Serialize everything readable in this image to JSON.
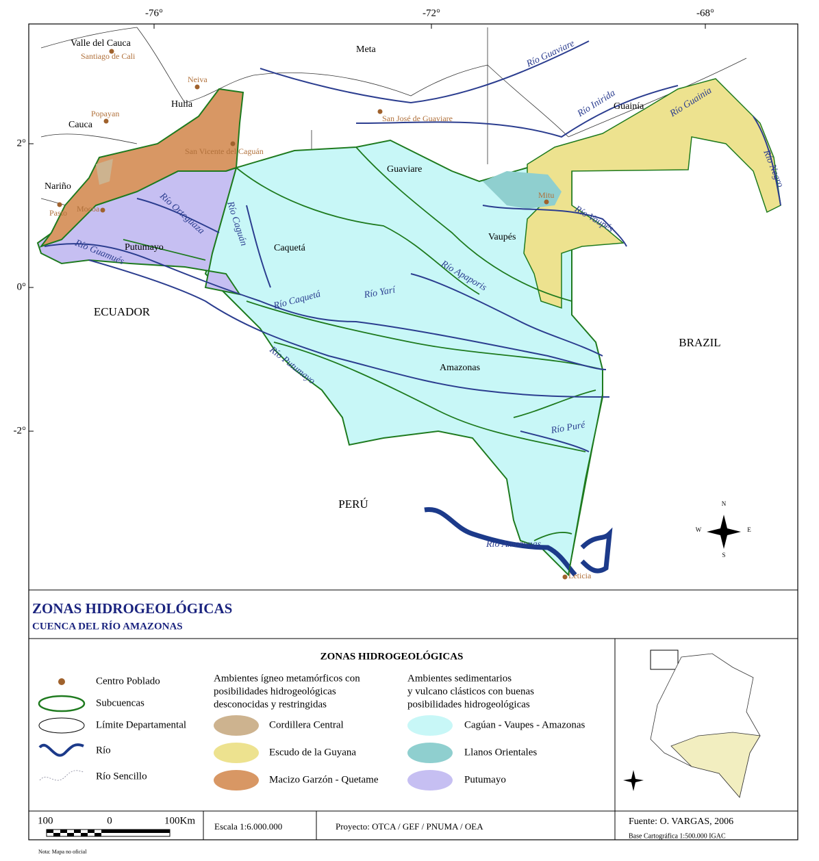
{
  "map": {
    "longitudes": [
      "-76°",
      "-72°",
      "-68°"
    ],
    "latitudes": [
      "2°",
      "0°",
      "-2°"
    ],
    "towns": [
      "Santiago de Cali",
      "Neiva",
      "Popayan",
      "San José de Guaviare",
      "San Vicente del Caguán",
      "Pasto",
      "Mocoa",
      "Mitu",
      "Leticia"
    ],
    "regions": [
      "Valle del Cauca",
      "Meta",
      "Huila",
      "Cauca",
      "Guainía",
      "Nariño",
      "Guaviare",
      "Putumayo",
      "Caquetá",
      "Vaupés",
      "Amazonas"
    ],
    "countries": [
      "ECUADOR",
      "BRAZIL",
      "PERÚ"
    ],
    "rivers": [
      "Río Guaviare",
      "Río Inirida",
      "Río Guainia",
      "Río Negro",
      "Río Vaupés",
      "Río Orteguaza",
      "Río Caguán",
      "Río Guamués",
      "Río Apaporis",
      "Río Yarí",
      "Río Caquetá",
      "Río Putumayo",
      "Río Puré",
      "Río Amazonas"
    ],
    "compass": {
      "north": "N",
      "south": "S",
      "east": "E",
      "west": "W"
    }
  },
  "title": "ZONAS HIDROGEOLÓGICAS",
  "subtitle": "CUENCA DEL RÍO AMAZONAS",
  "legend": {
    "title": "ZONAS HIDROGEOLÓGICAS",
    "symbols": [
      "Centro Poblado",
      "Subcuencas",
      "Límite Departamental",
      "Río",
      "Río Sencillo"
    ],
    "groups": [
      {
        "heading": [
          "Ambientes ígneo metamórficos con",
          "posibilidades hidrogeológicas",
          "desconocidas y restringidas"
        ],
        "items": [
          {
            "label": "Cordillera Central",
            "color": "#cdb38f"
          },
          {
            "label": "Escudo de la Guyana",
            "color": "#ede28f"
          },
          {
            "label": "Macizo Garzón - Quetame",
            "color": "#d89764"
          }
        ]
      },
      {
        "heading": [
          "Ambientes sedimentarios",
          "y vulcano clásticos con buenas",
          "posibilidades hidrogeológicas"
        ],
        "items": [
          {
            "label": "Cagúan - Vaupes - Amazonas",
            "color": "#c8f7f7"
          },
          {
            "label": "Llanos Orientales",
            "color": "#8fcfcf"
          },
          {
            "label": "Putumayo",
            "color": "#c6bff2"
          }
        ]
      }
    ]
  },
  "scale_bar": {
    "labels": [
      "100",
      "0",
      "100Km"
    ],
    "scale": "Escala 1:6.000.000"
  },
  "project": "Proyecto: OTCA / GEF / PNUMA / OEA",
  "source": "Fuente: O. VARGAS, 2006",
  "base": "Base Cartográfica 1:500.000 IGAC",
  "note": "Nota: Mapa no oficial"
}
